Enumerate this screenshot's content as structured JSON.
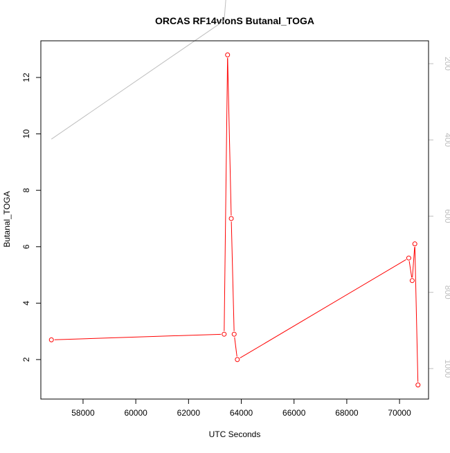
{
  "chart_data": {
    "type": "line",
    "title": "ORCAS RF14vlonS Butanal_TOGA",
    "xlabel": "UTC Seconds",
    "ylabel": "Butanal_TOGA",
    "xlim": [
      56400,
      71100
    ],
    "ylim": [
      0.6,
      13.3
    ],
    "y2lim": [
      1080,
      140
    ],
    "x_ticks": [
      58000,
      60000,
      62000,
      64000,
      66000,
      68000,
      70000
    ],
    "y_ticks": [
      2,
      4,
      6,
      8,
      10,
      12
    ],
    "y2_ticks": [
      200,
      400,
      600,
      800,
      1000
    ],
    "series": [
      {
        "color": "#ff0000",
        "marker": "open-circle",
        "axis": "left",
        "x": [
          56800,
          63350,
          63480,
          63620,
          63730,
          63850,
          70350,
          70480,
          70580,
          70700
        ],
        "y": [
          2.7,
          2.9,
          12.8,
          7.0,
          2.9,
          2.0,
          5.6,
          4.8,
          6.1,
          1.1
        ]
      },
      {
        "color": "#bebebe",
        "marker": "none",
        "axis": "right",
        "x": [
          56800,
          63350,
          63450
        ],
        "y": [
          398,
          87,
          0
        ]
      }
    ]
  }
}
